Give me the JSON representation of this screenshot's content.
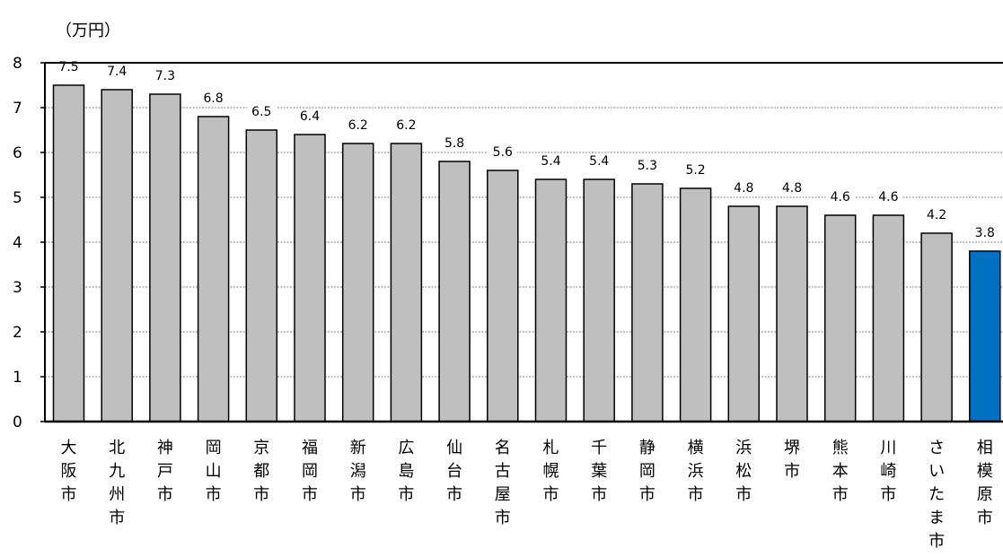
{
  "unit_label": "（万円）",
  "colors": {
    "bar": "#bfbfbf",
    "highlight": "#0070c0",
    "border": "#000000"
  },
  "chart_data": {
    "type": "bar",
    "title": "",
    "xlabel": "",
    "ylabel": "（万円）",
    "ylim": [
      0,
      8
    ],
    "yticks": [
      0,
      1,
      2,
      3,
      4,
      5,
      6,
      7,
      8
    ],
    "grid": true,
    "categories": [
      "大阪市",
      "北九州市",
      "神戸市",
      "岡山市",
      "京都市",
      "福岡市",
      "新潟市",
      "広島市",
      "仙台市",
      "名古屋市",
      "札幌市",
      "千葉市",
      "静岡市",
      "横浜市",
      "浜松市",
      "堺市",
      "熊本市",
      "川崎市",
      "さいたま市",
      "相模原市"
    ],
    "values": [
      7.5,
      7.4,
      7.3,
      6.8,
      6.5,
      6.4,
      6.2,
      6.2,
      5.8,
      5.6,
      5.4,
      5.4,
      5.3,
      5.2,
      4.8,
      4.8,
      4.6,
      4.6,
      4.2,
      3.8
    ],
    "highlight": "相模原市"
  }
}
